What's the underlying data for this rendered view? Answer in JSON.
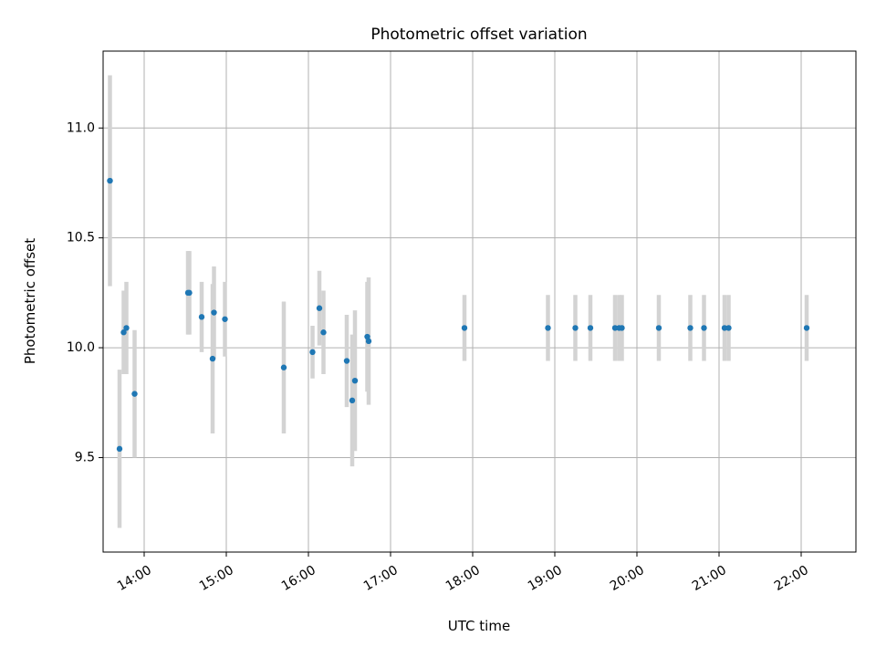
{
  "chart_data": {
    "type": "scatter",
    "title": "Photometric offset variation",
    "xlabel": "UTC time",
    "ylabel": "Photometric offset",
    "xlim": [
      "13:30",
      "22:40"
    ],
    "ylim": [
      9.07,
      11.35
    ],
    "xticks": [
      "14:00",
      "15:00",
      "16:00",
      "17:00",
      "18:00",
      "19:00",
      "20:00",
      "21:00",
      "22:00"
    ],
    "yticks": [
      "9.5",
      "10.0",
      "10.5",
      "11.0"
    ],
    "grid": true,
    "series": [
      {
        "marker_color": "#1f77b4",
        "errorbar_color": "#d3d3d3",
        "points": [
          {
            "x": "13:35",
            "y": 10.76,
            "err": 0.48
          },
          {
            "x": "13:42",
            "y": 9.54,
            "err": 0.36
          },
          {
            "x": "13:45",
            "y": 10.07,
            "err": 0.19
          },
          {
            "x": "13:47",
            "y": 10.09,
            "err": 0.21
          },
          {
            "x": "13:53",
            "y": 9.79,
            "err": 0.29
          },
          {
            "x": "14:32",
            "y": 10.25,
            "err": 0.19
          },
          {
            "x": "14:33",
            "y": 10.25,
            "err": 0.19
          },
          {
            "x": "14:42",
            "y": 10.14,
            "err": 0.16
          },
          {
            "x": "14:50",
            "y": 9.95,
            "err": 0.34
          },
          {
            "x": "14:51",
            "y": 10.16,
            "err": 0.21
          },
          {
            "x": "14:59",
            "y": 10.13,
            "err": 0.17
          },
          {
            "x": "15:42",
            "y": 9.91,
            "err": 0.3
          },
          {
            "x": "16:03",
            "y": 9.98,
            "err": 0.12
          },
          {
            "x": "16:08",
            "y": 10.18,
            "err": 0.17
          },
          {
            "x": "16:11",
            "y": 10.07,
            "err": 0.19
          },
          {
            "x": "16:28",
            "y": 9.94,
            "err": 0.21
          },
          {
            "x": "16:32",
            "y": 9.76,
            "err": 0.3
          },
          {
            "x": "16:34",
            "y": 9.85,
            "err": 0.32
          },
          {
            "x": "16:43",
            "y": 10.05,
            "err": 0.25
          },
          {
            "x": "16:44",
            "y": 10.03,
            "err": 0.29
          },
          {
            "x": "17:54",
            "y": 10.09,
            "err": 0.15
          },
          {
            "x": "18:55",
            "y": 10.09,
            "err": 0.15
          },
          {
            "x": "19:15",
            "y": 10.09,
            "err": 0.15
          },
          {
            "x": "19:26",
            "y": 10.09,
            "err": 0.15
          },
          {
            "x": "19:44",
            "y": 10.09,
            "err": 0.15
          },
          {
            "x": "19:47",
            "y": 10.09,
            "err": 0.15
          },
          {
            "x": "19:49",
            "y": 10.09,
            "err": 0.15
          },
          {
            "x": "20:16",
            "y": 10.09,
            "err": 0.15
          },
          {
            "x": "20:39",
            "y": 10.09,
            "err": 0.15
          },
          {
            "x": "20:49",
            "y": 10.09,
            "err": 0.15
          },
          {
            "x": "21:04",
            "y": 10.09,
            "err": 0.15
          },
          {
            "x": "21:07",
            "y": 10.09,
            "err": 0.15
          },
          {
            "x": "22:04",
            "y": 10.09,
            "err": 0.15
          }
        ]
      }
    ]
  }
}
